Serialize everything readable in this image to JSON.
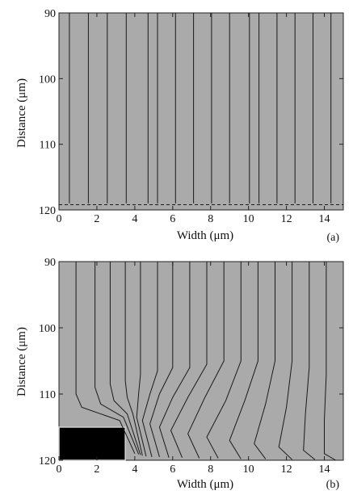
{
  "figure": {
    "panels": [
      {
        "id": "a",
        "tag": "(a)",
        "xlabel": "Width (μm)",
        "ylabel": "Distance (μm)",
        "x_ticks": [
          "0",
          "2",
          "4",
          "6",
          "8",
          "10",
          "12",
          "14"
        ],
        "y_ticks": [
          "90",
          "100",
          "110",
          "120"
        ]
      },
      {
        "id": "b",
        "tag": "(b)",
        "xlabel": "Width (μm)",
        "ylabel": "Distance (μm)",
        "x_ticks": [
          "0",
          "2",
          "4",
          "6",
          "8",
          "10",
          "12",
          "14"
        ],
        "y_ticks": [
          "90",
          "100",
          "110",
          "120"
        ]
      }
    ]
  },
  "colors": {
    "plot_bg": "#aaaaaa",
    "line": "#1a1a1a",
    "mask": "#000000",
    "mask_edge": "#d0d0d0"
  },
  "chart_data": [
    {
      "type": "line",
      "xlim": [
        0,
        15
      ],
      "ylim": [
        90,
        120
      ],
      "y_inverted": true,
      "series": [
        {
          "x": [
            0.55,
            0.55
          ],
          "y": [
            90,
            119
          ]
        },
        {
          "x": [
            1.55,
            1.55
          ],
          "y": [
            90,
            119
          ]
        },
        {
          "x": [
            2.55,
            2.55
          ],
          "y": [
            90,
            119
          ]
        },
        {
          "x": [
            3.55,
            3.55
          ],
          "y": [
            90,
            119
          ]
        },
        {
          "x": [
            4.7,
            4.7
          ],
          "y": [
            90,
            119
          ]
        },
        {
          "x": [
            5.2,
            5.2
          ],
          "y": [
            90,
            119
          ]
        },
        {
          "x": [
            6.15,
            6.15
          ],
          "y": [
            90,
            119
          ]
        },
        {
          "x": [
            7.1,
            7.1
          ],
          "y": [
            90,
            119
          ]
        },
        {
          "x": [
            8.05,
            8.05
          ],
          "y": [
            90,
            119
          ]
        },
        {
          "x": [
            9.0,
            9.0
          ],
          "y": [
            90,
            119
          ]
        },
        {
          "x": [
            10.05,
            10.05
          ],
          "y": [
            90,
            119
          ]
        },
        {
          "x": [
            10.55,
            10.55
          ],
          "y": [
            90,
            119
          ]
        },
        {
          "x": [
            11.5,
            11.5
          ],
          "y": [
            90,
            119
          ]
        },
        {
          "x": [
            12.45,
            12.45
          ],
          "y": [
            90,
            119
          ]
        },
        {
          "x": [
            13.4,
            13.4
          ],
          "y": [
            90,
            119
          ]
        },
        {
          "x": [
            14.35,
            14.35
          ],
          "y": [
            90,
            119
          ]
        }
      ]
    },
    {
      "type": "line",
      "xlim": [
        0,
        15
      ],
      "ylim": [
        90,
        120
      ],
      "y_inverted": true,
      "mask_region": {
        "x": [
          0,
          3.5
        ],
        "y": [
          115,
          120
        ]
      },
      "series": [
        {
          "x": [
            0.9,
            0.9,
            1.2,
            3.2,
            4.0
          ],
          "y": [
            90,
            110,
            112,
            114,
            119.0
          ]
        },
        {
          "x": [
            1.9,
            1.9,
            2.2,
            3.4,
            4.2
          ],
          "y": [
            90,
            109,
            111.5,
            113.5,
            119.1
          ]
        },
        {
          "x": [
            2.7,
            2.7,
            2.9,
            3.6,
            4.3
          ],
          "y": [
            90,
            108.5,
            111,
            113,
            119.2
          ]
        },
        {
          "x": [
            3.5,
            3.5,
            3.6,
            3.9,
            4.4
          ],
          "y": [
            90,
            108,
            110.5,
            113,
            119.3
          ]
        },
        {
          "x": [
            4.3,
            4.3,
            4.2,
            4.1,
            4.6
          ],
          "y": [
            90,
            107,
            110,
            113.5,
            119.4
          ]
        },
        {
          "x": [
            5.2,
            5.2,
            4.8,
            4.4,
            4.9
          ],
          "y": [
            90,
            106.5,
            110,
            114,
            119.5
          ]
        },
        {
          "x": [
            6.0,
            6.0,
            5.3,
            4.8,
            5.3
          ],
          "y": [
            90,
            106,
            110,
            114.5,
            119.5
          ]
        },
        {
          "x": [
            6.9,
            6.9,
            6.0,
            5.3,
            5.8
          ],
          "y": [
            90,
            106,
            110.5,
            115,
            119.6
          ]
        },
        {
          "x": [
            7.8,
            7.8,
            6.8,
            5.9,
            6.5
          ],
          "y": [
            90,
            105.5,
            110.5,
            115.5,
            119.6
          ]
        },
        {
          "x": [
            8.7,
            8.7,
            7.7,
            6.8,
            7.4
          ],
          "y": [
            90,
            105,
            110.5,
            116,
            119.7
          ]
        },
        {
          "x": [
            9.6,
            9.6,
            8.8,
            7.8,
            8.4
          ],
          "y": [
            90,
            105,
            111,
            116.5,
            119.7
          ]
        },
        {
          "x": [
            10.5,
            10.5,
            9.8,
            9.0,
            9.6
          ],
          "y": [
            90,
            105,
            111,
            117,
            119.8
          ]
        },
        {
          "x": [
            11.4,
            11.4,
            10.9,
            10.3,
            10.9
          ],
          "y": [
            90,
            105,
            111.5,
            117.5,
            119.8
          ]
        },
        {
          "x": [
            12.3,
            12.3,
            12.0,
            11.6,
            12.3
          ],
          "y": [
            90,
            105,
            112,
            118,
            119.9
          ]
        },
        {
          "x": [
            13.2,
            13.2,
            13.0,
            12.9,
            13.5
          ],
          "y": [
            90,
            106,
            113,
            118.5,
            119.9
          ]
        },
        {
          "x": [
            14.1,
            14.1,
            14.0,
            14.0,
            14.6
          ],
          "y": [
            90,
            107,
            114,
            119,
            120
          ]
        }
      ]
    }
  ]
}
